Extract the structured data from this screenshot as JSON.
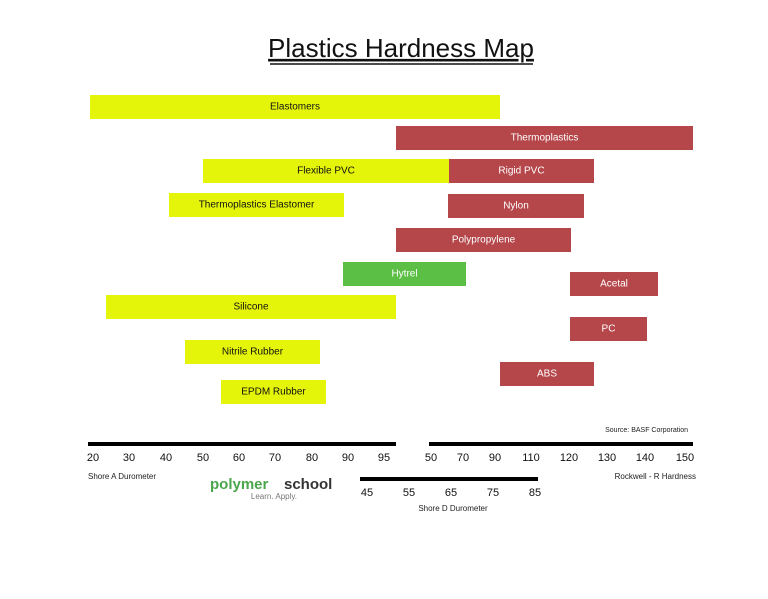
{
  "title": "Plastics Hardness Map",
  "bars": [
    {
      "label": "Elastomers",
      "color": "#e5f50a"
    },
    {
      "label": "Thermoplastics",
      "color": "#b5474b"
    },
    {
      "label": "Flexible PVC",
      "color": "#e5f50a"
    },
    {
      "label": "Rigid PVC",
      "color": "#b5474b"
    },
    {
      "label": "Thermoplastics Elastomer",
      "color": "#e5f50a"
    },
    {
      "label": "Nylon",
      "color": "#b5474b"
    },
    {
      "label": "Polypropylene",
      "color": "#b5474b"
    },
    {
      "label": "Hytrel",
      "color": "#5cbf45"
    },
    {
      "label": "Acetal",
      "color": "#b5474b"
    },
    {
      "label": "Silicone",
      "color": "#e5f50a"
    },
    {
      "label": "PC",
      "color": "#b5474b"
    },
    {
      "label": "Nitrile Rubber",
      "color": "#e5f50a"
    },
    {
      "label": "ABS",
      "color": "#b5474b"
    },
    {
      "label": "EPDM Rubber",
      "color": "#e5f50a"
    }
  ],
  "source": "Source: BASF Corporation",
  "shore_a": {
    "name": "Shore A Durometer",
    "ticks": [
      20,
      30,
      40,
      50,
      60,
      70,
      80,
      90,
      95
    ]
  },
  "rockwell": {
    "name": "Rockwell - R Hardness",
    "ticks": [
      50,
      70,
      90,
      110,
      120,
      130,
      140,
      150
    ]
  },
  "shore_d": {
    "name": "Shore D Durometer",
    "ticks": [
      45,
      55,
      65,
      75,
      85
    ]
  },
  "logo": {
    "word1": "polymer",
    "word2": "school",
    "tagline": "Learn. Apply."
  }
}
